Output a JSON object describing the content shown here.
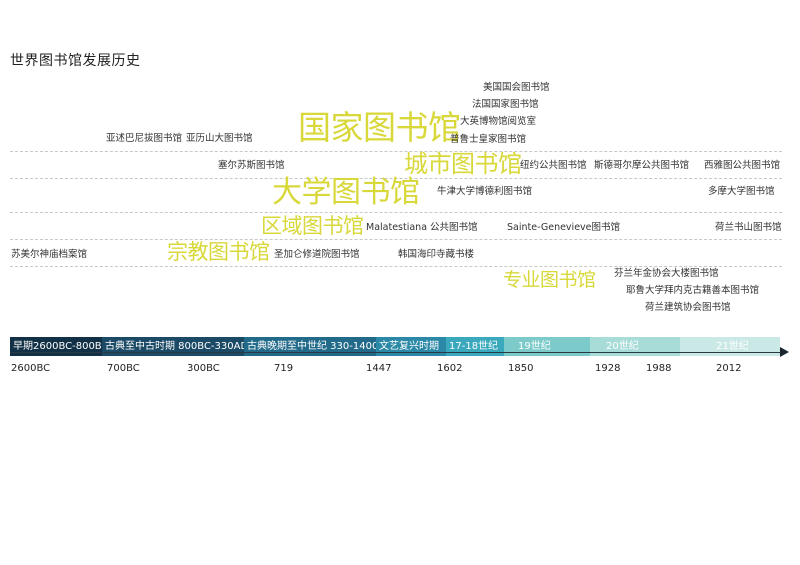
{
  "page_title": "世界图书馆发展历史",
  "categories": [
    {
      "label": "国家图书馆",
      "color": "#d8d83a"
    },
    {
      "label": "城市图书馆",
      "color": "#d8d83a"
    },
    {
      "label": "大学图书馆",
      "color": "#d8d83a"
    },
    {
      "label": "区域图书馆",
      "color": "#d8d83a"
    },
    {
      "label": "宗教图书馆",
      "color": "#d8d83a"
    },
    {
      "label": "专业图书馆",
      "color": "#d8d83a"
    }
  ],
  "libraries": [
    {
      "name": "美国国会图书馆"
    },
    {
      "name": "法国国家图书馆"
    },
    {
      "name": "大英博物馆阅览室"
    },
    {
      "name": "普鲁士皇家图书馆"
    },
    {
      "name": "亚述巴尼拔图书馆"
    },
    {
      "name": "亚历山大图书馆"
    },
    {
      "name": "塞尔苏斯图书馆"
    },
    {
      "name": "纽约公共图书馆"
    },
    {
      "name": "斯德哥尔摩公共图书馆"
    },
    {
      "name": "西雅图公共图书馆"
    },
    {
      "name": "牛津大学博德利图书馆"
    },
    {
      "name": "多摩大学图书馆"
    },
    {
      "name": "Malatestiana 公共图书馆"
    },
    {
      "name": "Sainte-Genevieve图书馆"
    },
    {
      "name": "荷兰书山图书馆"
    },
    {
      "name": "苏美尔神庙档案馆"
    },
    {
      "name": "圣加仑修道院图书馆"
    },
    {
      "name": "韩国海印寺藏书楼"
    },
    {
      "name": "芬兰年金协会大楼图书馆"
    },
    {
      "name": "耶鲁大学拜内克古籍善本图书馆"
    },
    {
      "name": "荷兰建筑协会图书馆"
    }
  ],
  "periods": [
    {
      "label": "早期2600BC-800BC",
      "color": "#123146"
    },
    {
      "label": "古典至中古时期 800BC-330AD",
      "color": "#1b4a66"
    },
    {
      "label": "古典晚期至中世纪 330-1400",
      "color": "#226a8a"
    },
    {
      "label": "文艺复兴时期",
      "color": "#2b88a6"
    },
    {
      "label": "17-18世纪",
      "color": "#3aa9bd"
    },
    {
      "label": "19世纪",
      "color": "#7ccaca"
    },
    {
      "label": "20世纪",
      "color": "#a8dcd8"
    },
    {
      "label": "21世纪",
      "color": "#c9e8e6"
    }
  ],
  "years": [
    "2600BC",
    "700BC",
    "300BC",
    "719",
    "1447",
    "1602",
    "1850",
    "1928",
    "1988",
    "2012"
  ]
}
